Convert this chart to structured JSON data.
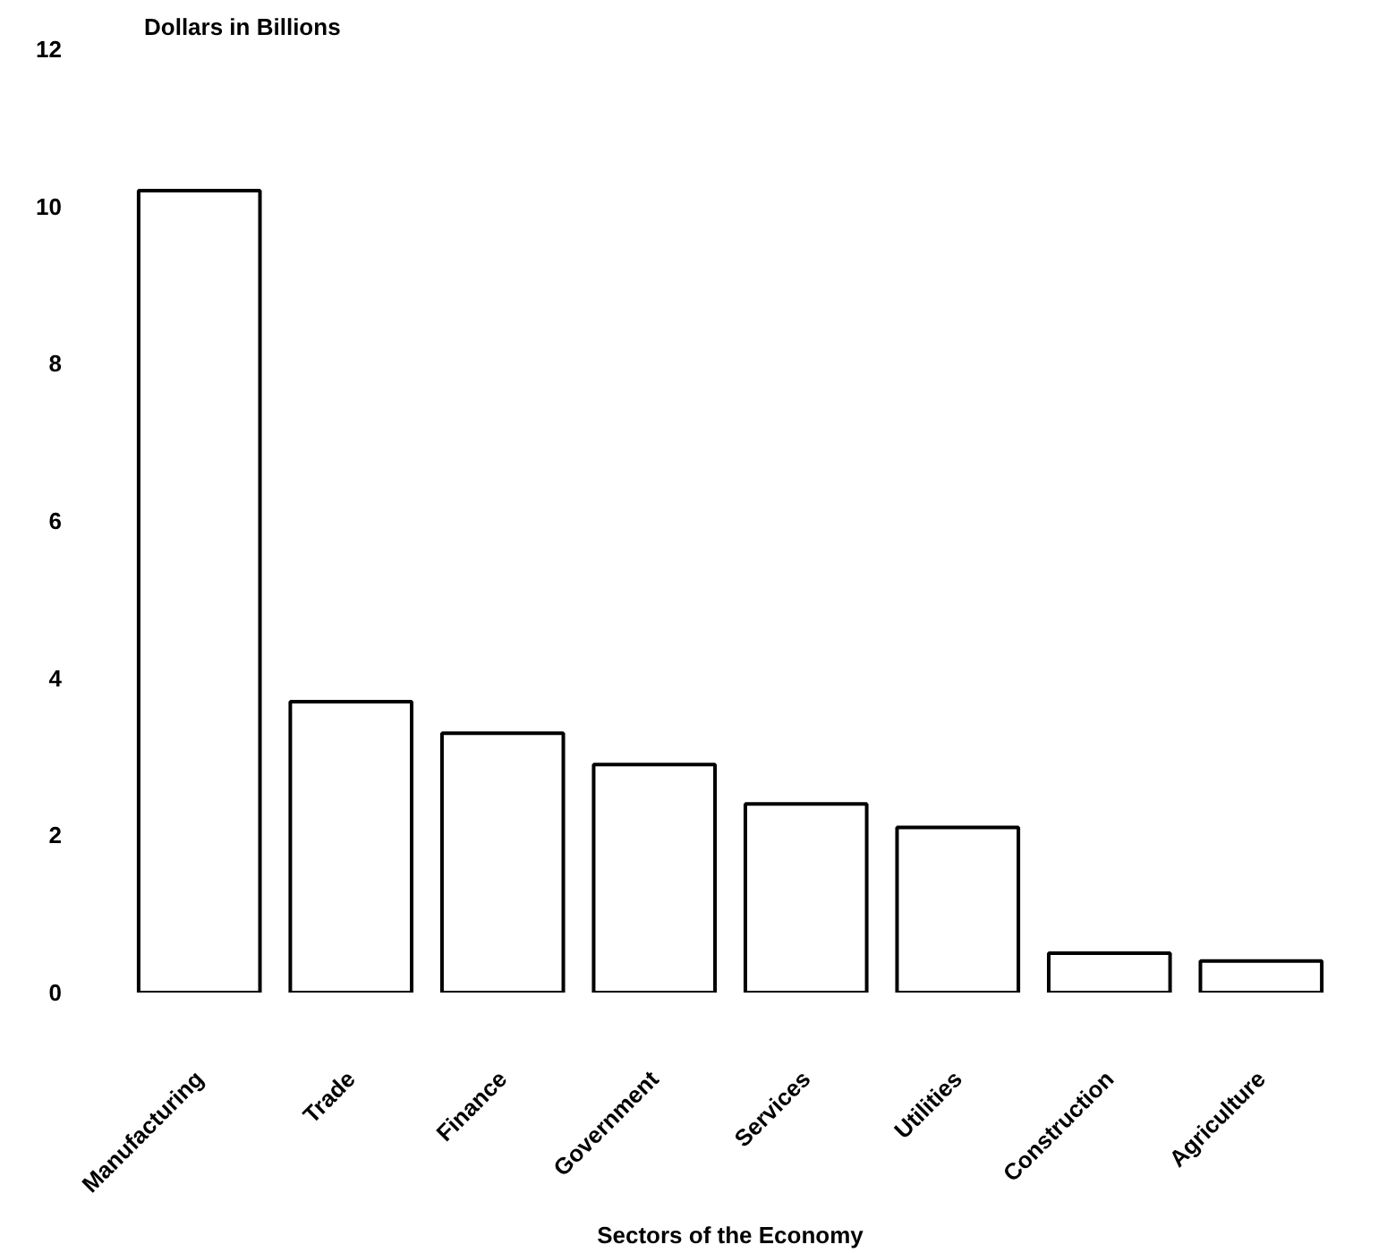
{
  "chart_data": {
    "type": "bar",
    "ylabel": "Dollars in Billions",
    "xlabel": "Sectors of the Economy",
    "categories": [
      "Manufacturing",
      "Trade",
      "Finance",
      "Government",
      "Services",
      "Utilities",
      "Construction",
      "Agriculture"
    ],
    "values": [
      10.2,
      3.7,
      3.3,
      2.9,
      2.4,
      2.1,
      0.5,
      0.4
    ],
    "color": "#ffffff",
    "ylim": [
      0,
      12
    ],
    "yticks": [
      0,
      2,
      4,
      6,
      8,
      10,
      12
    ],
    "grid": false
  }
}
